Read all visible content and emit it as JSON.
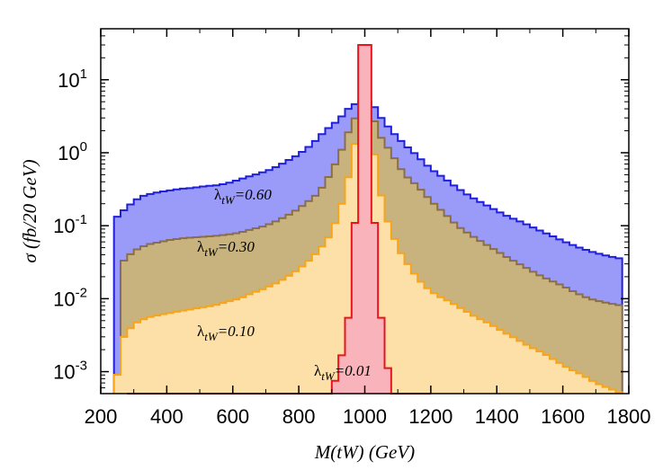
{
  "chart_data": {
    "type": "area",
    "title": "",
    "xlabel": "M(tW) (GeV)",
    "ylabel": "σ (fb/20 GeV)",
    "yscale": "log",
    "xlim": [
      200,
      1800
    ],
    "ylim": [
      0.0005,
      50
    ],
    "grid": false,
    "bin_width": 20,
    "x_ticks": [
      "200",
      "400",
      "600",
      "800",
      "1000",
      "1200",
      "1400",
      "1600",
      "1800"
    ],
    "y_ticks": [
      {
        "value": 10,
        "base": "10",
        "exp": "1"
      },
      {
        "value": 1,
        "base": "10",
        "exp": "0"
      },
      {
        "value": 0.1,
        "base": "10",
        "exp": "-1"
      },
      {
        "value": 0.01,
        "base": "10",
        "exp": "-2"
      },
      {
        "value": 0.001,
        "base": "10",
        "exp": "-3"
      }
    ],
    "series": [
      {
        "label_main": "λ",
        "label_sub": "tW",
        "label_value": "=0.60",
        "fill": "#9a9af8",
        "stroke": "#1f1fdc",
        "points": [
          [
            240,
            0.12
          ],
          [
            280,
            0.18
          ],
          [
            320,
            0.25
          ],
          [
            360,
            0.28
          ],
          [
            400,
            0.3
          ],
          [
            440,
            0.32
          ],
          [
            480,
            0.33
          ],
          [
            520,
            0.35
          ],
          [
            560,
            0.36
          ],
          [
            600,
            0.4
          ],
          [
            640,
            0.46
          ],
          [
            680,
            0.52
          ],
          [
            720,
            0.6
          ],
          [
            760,
            0.75
          ],
          [
            800,
            0.95
          ],
          [
            840,
            1.3
          ],
          [
            880,
            2.0
          ],
          [
            920,
            2.8
          ],
          [
            950,
            4.0
          ],
          [
            980,
            5.0
          ],
          [
            1000,
            5.2
          ],
          [
            1020,
            5.0
          ],
          [
            1050,
            3.0
          ],
          [
            1080,
            2.0
          ],
          [
            1120,
            1.3
          ],
          [
            1160,
            0.9
          ],
          [
            1200,
            0.6
          ],
          [
            1240,
            0.45
          ],
          [
            1280,
            0.33
          ],
          [
            1320,
            0.25
          ],
          [
            1360,
            0.2
          ],
          [
            1400,
            0.16
          ],
          [
            1440,
            0.13
          ],
          [
            1480,
            0.11
          ],
          [
            1520,
            0.09
          ],
          [
            1560,
            0.075
          ],
          [
            1600,
            0.062
          ],
          [
            1640,
            0.052
          ],
          [
            1680,
            0.045
          ],
          [
            1720,
            0.04
          ],
          [
            1780,
            0.035
          ]
        ]
      },
      {
        "label_main": "λ",
        "label_sub": "tW",
        "label_value": "=0.30",
        "fill": "#c8b37e",
        "stroke": "#8a6e48",
        "points": [
          [
            260,
            0.03
          ],
          [
            300,
            0.045
          ],
          [
            340,
            0.055
          ],
          [
            380,
            0.06
          ],
          [
            420,
            0.065
          ],
          [
            460,
            0.068
          ],
          [
            500,
            0.07
          ],
          [
            540,
            0.072
          ],
          [
            580,
            0.075
          ],
          [
            620,
            0.08
          ],
          [
            660,
            0.09
          ],
          [
            700,
            0.1
          ],
          [
            740,
            0.12
          ],
          [
            780,
            0.15
          ],
          [
            820,
            0.2
          ],
          [
            860,
            0.28
          ],
          [
            900,
            0.55
          ],
          [
            930,
            1.1
          ],
          [
            960,
            2.5
          ],
          [
            980,
            3.5
          ],
          [
            1000,
            3.9
          ],
          [
            1020,
            3.5
          ],
          [
            1050,
            1.6
          ],
          [
            1080,
            1.0
          ],
          [
            1120,
            0.5
          ],
          [
            1160,
            0.35
          ],
          [
            1200,
            0.22
          ],
          [
            1240,
            0.15
          ],
          [
            1280,
            0.1
          ],
          [
            1320,
            0.075
          ],
          [
            1360,
            0.058
          ],
          [
            1400,
            0.045
          ],
          [
            1440,
            0.035
          ],
          [
            1480,
            0.028
          ],
          [
            1520,
            0.022
          ],
          [
            1560,
            0.018
          ],
          [
            1600,
            0.015
          ],
          [
            1640,
            0.012
          ],
          [
            1680,
            0.01
          ],
          [
            1720,
            0.009
          ],
          [
            1780,
            0.008
          ]
        ]
      },
      {
        "label_main": "λ",
        "label_sub": "tW",
        "label_value": "=0.10",
        "fill": "#fddfa8",
        "stroke": "#f7a41a",
        "points": [
          [
            240,
            0.0005
          ],
          [
            270,
            0.003
          ],
          [
            300,
            0.0045
          ],
          [
            340,
            0.0055
          ],
          [
            380,
            0.006
          ],
          [
            420,
            0.0065
          ],
          [
            460,
            0.007
          ],
          [
            500,
            0.0075
          ],
          [
            540,
            0.008
          ],
          [
            580,
            0.009
          ],
          [
            620,
            0.01
          ],
          [
            660,
            0.012
          ],
          [
            700,
            0.014
          ],
          [
            740,
            0.017
          ],
          [
            780,
            0.022
          ],
          [
            820,
            0.03
          ],
          [
            860,
            0.045
          ],
          [
            900,
            0.08
          ],
          [
            930,
            0.2
          ],
          [
            960,
            0.7
          ],
          [
            980,
            2.5
          ],
          [
            1000,
            3.0
          ],
          [
            1020,
            2.0
          ],
          [
            1040,
            0.45
          ],
          [
            1060,
            0.15
          ],
          [
            1100,
            0.05
          ],
          [
            1140,
            0.025
          ],
          [
            1180,
            0.015
          ],
          [
            1220,
            0.011
          ],
          [
            1260,
            0.009
          ],
          [
            1300,
            0.007
          ],
          [
            1340,
            0.0055
          ],
          [
            1380,
            0.0045
          ],
          [
            1420,
            0.0035
          ],
          [
            1460,
            0.0028
          ],
          [
            1500,
            0.0022
          ],
          [
            1540,
            0.0018
          ],
          [
            1580,
            0.0014
          ],
          [
            1620,
            0.0011
          ],
          [
            1660,
            0.0009
          ],
          [
            1700,
            0.0007
          ],
          [
            1780,
            0.0005
          ]
        ]
      },
      {
        "label_main": "λ",
        "label_sub": "tW",
        "label_value": "=0.01",
        "fill": "#f8b4ba",
        "stroke": "#e8141e",
        "points": [
          [
            280,
            0.0005
          ],
          [
            320,
            0.0005
          ],
          [
            660,
            0.0005
          ],
          [
            840,
            0.0005
          ],
          [
            900,
            0.0005
          ],
          [
            940,
            0.0025
          ],
          [
            960,
            0.012
          ],
          [
            980,
            1.0
          ],
          [
            990,
            30
          ],
          [
            1000,
            30
          ],
          [
            1010,
            30
          ],
          [
            1020,
            1.0
          ],
          [
            1040,
            0.012
          ],
          [
            1060,
            0.0025
          ],
          [
            1080,
            0.0005
          ],
          [
            1200,
            0.0005
          ]
        ]
      }
    ]
  }
}
